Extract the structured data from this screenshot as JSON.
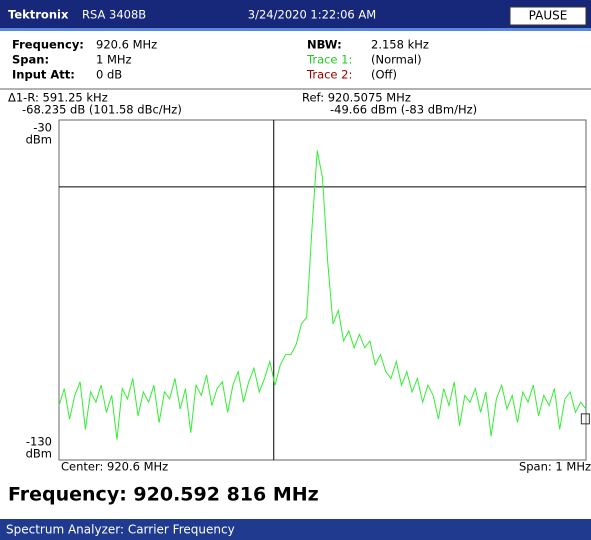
{
  "header": {
    "brand": "Tektronix",
    "model": "RSA 3408B",
    "datetime": "3/24/2020 1:22:06 AM",
    "button": "PAUSE"
  },
  "settings": [
    {
      "label": "Frequency:",
      "value": "920.6 MHz"
    },
    {
      "label": "Span:",
      "value": "1 MHz"
    },
    {
      "label": "Input Att:",
      "value": "0 dB"
    }
  ],
  "status": [
    {
      "label": "NBW:",
      "value": "2.158 kHz",
      "color": "#000000"
    },
    {
      "label": "Trace 1:",
      "value": "(Normal)",
      "color": "#22cc22"
    },
    {
      "label": "Trace 2:",
      "value": "(Off)",
      "color": "#a00000"
    }
  ],
  "chart_data": {
    "type": "line",
    "delta_readout": [
      "Δ1-R: 591.25 kHz",
      "-68.235 dB (101.58 dBc/Hz)"
    ],
    "ref_readout": [
      "Ref: 920.5075 MHz",
      "-49.66 dBm (-83 dBm/Hz)"
    ],
    "y_unit": "dBm",
    "center_label": "Center: 920.6 MHz",
    "span_label": "Span: 1 MHz",
    "xlim": [
      920.1,
      921.1
    ],
    "ylim": [
      -130,
      -30
    ],
    "yticks": [
      -30,
      -130
    ],
    "reference_marker": {
      "x": 920.5075,
      "y": -49.66
    },
    "delta_marker": {
      "x": 0.59125,
      "y": -68.235
    },
    "x": [
      920.1,
      920.11,
      920.12,
      920.13,
      920.14,
      920.15,
      920.16,
      920.17,
      920.18,
      920.19,
      920.2,
      920.21,
      920.22,
      920.23,
      920.24,
      920.25,
      920.26,
      920.27,
      920.28,
      920.29,
      920.3,
      920.31,
      920.32,
      920.33,
      920.34,
      920.35,
      920.36,
      920.37,
      920.38,
      920.39,
      920.4,
      920.41,
      920.42,
      920.43,
      920.44,
      920.45,
      920.46,
      920.47,
      920.48,
      920.49,
      920.5,
      920.51,
      920.52,
      920.53,
      920.54,
      920.55,
      920.56,
      920.57,
      920.58,
      920.59,
      920.6,
      920.61,
      920.62,
      920.63,
      920.64,
      920.65,
      920.66,
      920.67,
      920.68,
      920.69,
      920.7,
      920.71,
      920.72,
      920.73,
      920.74,
      920.75,
      920.76,
      920.77,
      920.78,
      920.79,
      920.8,
      920.81,
      920.82,
      920.83,
      920.84,
      920.85,
      920.86,
      920.87,
      920.88,
      920.89,
      920.9,
      920.91,
      920.92,
      920.93,
      920.94,
      920.95,
      920.96,
      920.97,
      920.98,
      920.99,
      921.0,
      921.01,
      921.02,
      921.03,
      921.04,
      921.05,
      921.06,
      921.07,
      921.08,
      921.09,
      921.1
    ],
    "series": [
      {
        "name": "Trace 1",
        "color": "#33ee33",
        "values": [
          -114,
          -109,
          -118,
          -111,
          -107,
          -121,
          -110,
          -113,
          -108,
          -116,
          -111,
          -124,
          -109,
          -112,
          -106,
          -117,
          -110,
          -113,
          -108,
          -119,
          -110,
          -112,
          -106,
          -115,
          -109,
          -122,
          -108,
          -111,
          -105,
          -114,
          -109,
          -107,
          -116,
          -108,
          -104,
          -113,
          -107,
          -103,
          -110,
          -106,
          -101,
          -108,
          -102,
          -99,
          -99,
          -96,
          -90,
          -88,
          -62,
          -39,
          -47,
          -72,
          -90,
          -86,
          -95,
          -92,
          -97,
          -93,
          -97,
          -95,
          -102,
          -99,
          -104,
          -106,
          -101,
          -108,
          -104,
          -110,
          -106,
          -113,
          -108,
          -111,
          -118,
          -109,
          -114,
          -107,
          -120,
          -111,
          -113,
          -109,
          -116,
          -110,
          -123,
          -112,
          -108,
          -115,
          -111,
          -119,
          -110,
          -113,
          -108,
          -117,
          -111,
          -114,
          -109,
          -121,
          -112,
          -110,
          -116,
          -113,
          -115
        ]
      }
    ]
  },
  "result": "Frequency: 920.592 816 MHz",
  "footer": "Spectrum Analyzer: Carrier Frequency"
}
